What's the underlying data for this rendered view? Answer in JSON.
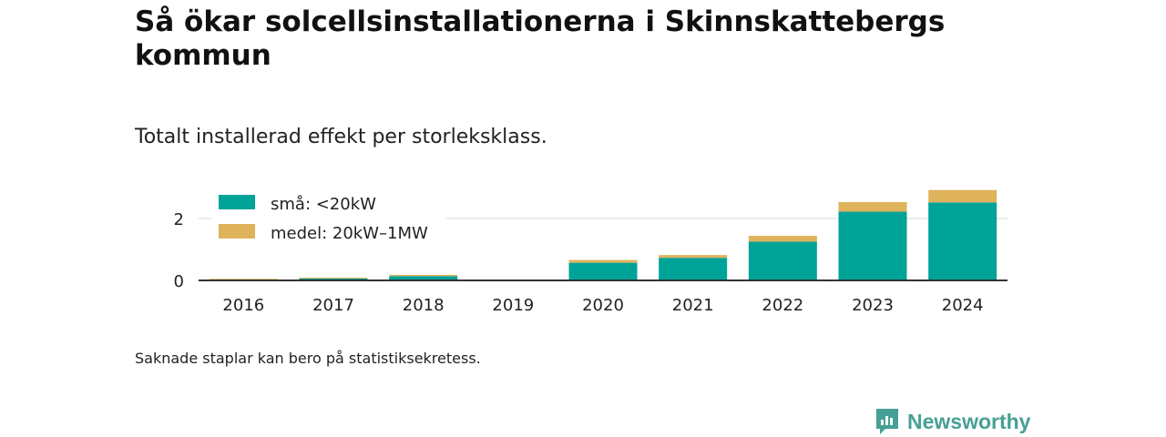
{
  "title": "Så ökar solcellsinstallationerna i Skinnskattebergs kommun",
  "subtitle": "Totalt installerad effekt per storleksklass.",
  "footnote": "Saknade staplar kan bero på statistiksekretess.",
  "brand": {
    "name": "Newsworthy",
    "color": "#46a095"
  },
  "chart_data": {
    "type": "bar",
    "stacked": true,
    "categories": [
      "2016",
      "2017",
      "2018",
      "2019",
      "2020",
      "2021",
      "2022",
      "2023",
      "2024"
    ],
    "series": [
      {
        "name": "små: <20kW",
        "color": "#00a398",
        "values": [
          0.02,
          0.06,
          0.14,
          0,
          0.57,
          0.73,
          1.25,
          2.22,
          2.52
        ]
      },
      {
        "name": "medel: 20kW–1MW",
        "color": "#dfb35c",
        "values": [
          0.03,
          0.03,
          0.04,
          0,
          0.09,
          0.09,
          0.19,
          0.31,
          0.4
        ]
      }
    ],
    "yticks": [
      0,
      2
    ],
    "ylim": [
      0,
      3
    ],
    "grid": true,
    "legend": "top-left"
  }
}
